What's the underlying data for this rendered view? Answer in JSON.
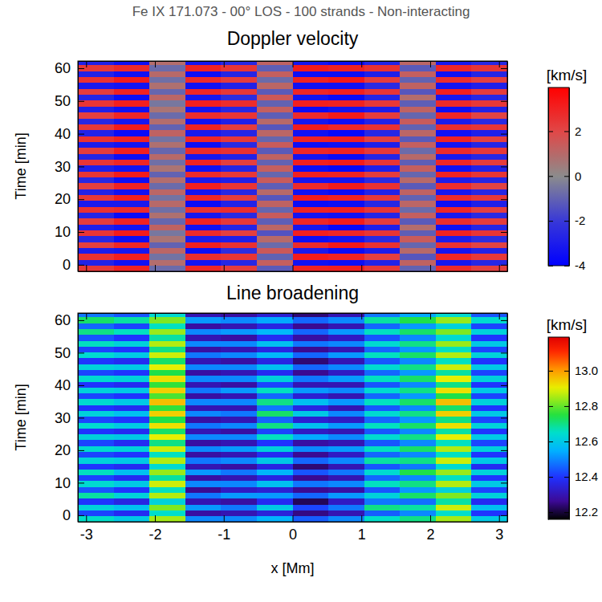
{
  "title": "Fe IX 171.073 - 00° LOS - 100 strands - Non-interacting",
  "chart_data": [
    {
      "type": "heatmap",
      "title": "Doppler velocity",
      "y_label": "Time [min]",
      "tick_labels": "y",
      "color": "bwr",
      "xlim": [
        -3.12,
        3.12
      ],
      "xticks": [
        -3,
        -2,
        -1,
        0,
        1,
        2,
        3
      ],
      "ylim": [
        -2,
        62.2
      ],
      "yticks": [
        0,
        10,
        20,
        30,
        40,
        50,
        60
      ],
      "x_edges": [
        -3.12,
        -2.6,
        -2.08,
        -1.56,
        -1.04,
        -0.52,
        0,
        0.52,
        1.04,
        1.56,
        2.08,
        2.6,
        3.12
      ],
      "y_edges": [
        -2,
        -0.2,
        1.6,
        3.4,
        5.2,
        7.0,
        8.8,
        10.6,
        12.4,
        14.2,
        16.0,
        17.8,
        19.6,
        21.4,
        23.2,
        25.0,
        26.8,
        28.6,
        30.4,
        32.2,
        34.0,
        35.8,
        37.6,
        39.4,
        41.2,
        43.0,
        44.8,
        46.6,
        48.4,
        50.2,
        52.0,
        53.8,
        55.6,
        57.4,
        59.2,
        61.0,
        62.8
      ],
      "values": [
        [
          2.4,
          3.0,
          -0.8,
          2.9,
          2.3,
          -1.2,
          3.0,
          3.1,
          2.4,
          -1.0,
          2.8,
          2.2
        ],
        [
          -2.8,
          -3.4,
          0.9,
          -3.3,
          -2.6,
          1.3,
          -3.4,
          -3.5,
          -2.8,
          1.2,
          -3.2,
          -2.6
        ],
        [
          2.6,
          3.1,
          -0.6,
          2.7,
          2.5,
          -1.0,
          3.2,
          3.0,
          2.2,
          -1.3,
          2.9,
          2.4
        ],
        [
          -3.0,
          -3.2,
          1.1,
          -3.5,
          -2.4,
          1.5,
          -3.1,
          -3.6,
          -3.0,
          1.0,
          -3.3,
          -2.8
        ],
        [
          2.2,
          2.9,
          -1.0,
          3.1,
          2.6,
          -0.8,
          2.8,
          3.3,
          2.6,
          -0.9,
          2.6,
          2.1
        ],
        [
          -2.6,
          -3.5,
          0.7,
          -3.0,
          -2.9,
          1.0,
          -3.5,
          -3.3,
          -2.5,
          1.4,
          -3.0,
          -2.4
        ],
        [
          2.5,
          3.2,
          -0.5,
          2.8,
          2.2,
          -1.4,
          3.1,
          2.9,
          2.5,
          -1.1,
          3.0,
          2.5
        ],
        [
          -2.9,
          -3.3,
          1.2,
          -3.4,
          -2.7,
          1.1,
          -3.2,
          -3.7,
          -2.9,
          0.9,
          -3.4,
          -2.7
        ],
        [
          2.3,
          3.0,
          -0.9,
          3.0,
          2.4,
          -1.1,
          2.9,
          3.2,
          2.3,
          -1.2,
          2.7,
          2.3
        ],
        [
          -2.7,
          -3.6,
          0.8,
          -3.2,
          -2.5,
          1.4,
          -3.3,
          -3.4,
          -2.7,
          1.3,
          -3.1,
          -2.5
        ],
        [
          2.6,
          2.8,
          -0.7,
          2.6,
          2.7,
          -0.9,
          3.0,
          3.1,
          2.5,
          -0.8,
          2.9,
          2.2
        ],
        [
          -3.1,
          -3.1,
          1.0,
          -3.6,
          -2.8,
          1.2,
          -3.6,
          -3.5,
          -2.6,
          1.1,
          -3.5,
          -2.9
        ],
        [
          2.4,
          3.1,
          -0.6,
          2.9,
          2.3,
          -1.3,
          3.2,
          3.0,
          2.4,
          -1.0,
          2.8,
          2.4
        ],
        [
          -2.8,
          -3.4,
          1.1,
          -3.3,
          -2.6,
          1.0,
          -3.4,
          -3.6,
          -2.8,
          1.2,
          -3.2,
          -2.6
        ],
        [
          2.2,
          3.0,
          -0.8,
          3.1,
          2.5,
          -1.1,
          2.8,
          3.2,
          2.6,
          -1.2,
          2.7,
          2.1
        ],
        [
          -2.6,
          -3.5,
          0.9,
          -3.1,
          -2.9,
          1.4,
          -3.3,
          -3.3,
          -2.5,
          1.0,
          -3.0,
          -2.7
        ],
        [
          2.5,
          3.2,
          -1.0,
          2.8,
          2.4,
          -0.9,
          3.1,
          3.0,
          2.3,
          -0.9,
          3.0,
          2.5
        ],
        [
          -2.9,
          -3.3,
          0.7,
          -3.4,
          -2.7,
          1.3,
          -3.5,
          -3.7,
          -2.9,
          1.3,
          -3.4,
          -2.8
        ],
        [
          2.5,
          2.9,
          -0.7,
          3.0,
          2.2,
          -1.0,
          3.1,
          3.2,
          2.5,
          -1.1,
          2.9,
          2.3
        ],
        [
          -2.7,
          -3.5,
          1.0,
          -3.2,
          -2.8,
          1.2,
          -3.3,
          -3.6,
          -2.7,
          1.0,
          -3.1,
          -2.6
        ],
        [
          2.3,
          3.1,
          -0.9,
          2.8,
          2.6,
          -1.2,
          2.9,
          3.0,
          2.4,
          -0.8,
          2.8,
          2.4
        ],
        [
          -3.0,
          -3.3,
          0.8,
          -3.5,
          -2.5,
          1.4,
          -3.5,
          -3.4,
          -2.9,
          1.3,
          -3.3,
          -2.7
        ],
        [
          2.6,
          3.0,
          -0.6,
          2.9,
          2.4,
          -0.9,
          3.0,
          3.1,
          2.2,
          -1.2,
          3.0,
          2.2
        ],
        [
          -2.8,
          -3.6,
          1.2,
          -3.1,
          -2.7,
          1.1,
          -3.4,
          -3.7,
          -2.6,
          1.1,
          -3.4,
          -2.9
        ],
        [
          2.4,
          3.2,
          -1.0,
          3.0,
          2.3,
          -1.3,
          3.2,
          2.9,
          2.6,
          -1.0,
          2.7,
          2.5
        ],
        [
          -2.6,
          -3.2,
          0.9,
          -3.4,
          -2.9,
          1.0,
          -3.2,
          -3.5,
          -2.8,
          1.4,
          -3.0,
          -2.5
        ],
        [
          2.2,
          2.9,
          -0.8,
          2.7,
          2.5,
          -1.1,
          2.8,
          3.2,
          2.3,
          -0.9,
          2.9,
          2.1
        ],
        [
          -2.9,
          -3.4,
          0.7,
          -3.3,
          -2.6,
          1.3,
          -3.6,
          -3.3,
          -3.0,
          1.2,
          -3.5,
          -2.8
        ],
        [
          2.5,
          3.1,
          -0.5,
          3.1,
          2.7,
          -1.0,
          3.1,
          3.0,
          2.4,
          -1.1,
          2.8,
          2.4
        ],
        [
          -2.7,
          -3.5,
          1.1,
          -3.2,
          -2.4,
          1.5,
          -3.3,
          -3.6,
          -2.7,
          0.9,
          -3.2,
          -2.6
        ],
        [
          2.3,
          3.0,
          -0.9,
          2.9,
          2.4,
          -1.2,
          2.9,
          3.1,
          2.5,
          -1.3,
          3.1,
          2.3
        ],
        [
          -3.1,
          -3.3,
          0.8,
          -3.4,
          -2.8,
          1.1,
          -3.4,
          -3.4,
          -2.5,
          1.2,
          -3.3,
          -2.9
        ],
        [
          2.6,
          3.2,
          -0.7,
          2.8,
          2.3,
          -0.8,
          3.0,
          3.3,
          2.3,
          -1.0,
          2.7,
          2.2
        ],
        [
          -2.8,
          -3.4,
          1.0,
          -3.5,
          -2.7,
          1.3,
          -3.5,
          -3.5,
          -2.9,
          1.3,
          -3.4,
          -2.7
        ],
        [
          2.4,
          2.8,
          -0.8,
          3.0,
          2.5,
          -1.1,
          3.2,
          3.0,
          2.6,
          -1.2,
          2.9,
          2.5
        ],
        [
          -2.9,
          -3.5,
          0.9,
          -3.3,
          -2.6,
          1.2,
          -3.3,
          -3.6,
          -2.8,
          1.1,
          -3.2,
          -2.6
        ]
      ],
      "colorbar_label": "[km/s]",
      "colorbar_range": [
        -4,
        3.95
      ],
      "colorbar_ticks": [
        -4,
        -2,
        0,
        2
      ]
    },
    {
      "type": "heatmap",
      "title": "Line broadening",
      "x_label": "x [Mm]",
      "y_label": "Time [min]",
      "color": "rainbow",
      "xlim": [
        -3.12,
        3.12
      ],
      "xticks": [
        -3,
        -2,
        -1,
        0,
        1,
        2,
        3
      ],
      "ylim": [
        -2,
        62.2
      ],
      "yticks": [
        0,
        10,
        20,
        30,
        40,
        50,
        60
      ],
      "x_edges": [
        -3.12,
        -2.6,
        -2.08,
        -1.56,
        -1.04,
        -0.52,
        0,
        0.52,
        1.04,
        1.56,
        2.08,
        2.6,
        3.12
      ],
      "y_edges": [
        -2,
        -0.2,
        1.6,
        3.4,
        5.2,
        7.0,
        8.8,
        10.6,
        12.4,
        14.2,
        16.0,
        17.8,
        19.6,
        21.4,
        23.2,
        25.0,
        26.8,
        28.6,
        30.4,
        32.2,
        34.0,
        35.8,
        37.6,
        39.4,
        41.2,
        43.0,
        44.8,
        46.6,
        48.4,
        50.2,
        52.0,
        53.8,
        55.6,
        57.4,
        59.2,
        61.0,
        62.8
      ],
      "values": [
        [
          12.65,
          12.6,
          12.85,
          12.5,
          12.5,
          12.55,
          12.45,
          12.5,
          12.65,
          12.7,
          12.85,
          12.6
        ],
        [
          12.42,
          12.38,
          12.65,
          12.28,
          12.3,
          12.35,
          12.25,
          12.3,
          12.45,
          12.5,
          12.65,
          12.4
        ],
        [
          12.62,
          12.58,
          12.82,
          12.52,
          12.48,
          12.6,
          12.42,
          12.48,
          12.7,
          12.68,
          12.88,
          12.58
        ],
        [
          12.4,
          12.36,
          12.62,
          12.3,
          12.28,
          12.38,
          12.22,
          12.32,
          12.48,
          12.47,
          12.68,
          12.38
        ],
        [
          12.68,
          12.62,
          12.86,
          12.48,
          12.52,
          12.52,
          12.46,
          12.52,
          12.62,
          12.72,
          12.82,
          12.62
        ],
        [
          12.44,
          12.4,
          12.66,
          12.26,
          12.32,
          12.34,
          12.26,
          12.28,
          12.44,
          12.52,
          12.62,
          12.42
        ],
        [
          12.64,
          12.6,
          12.88,
          12.5,
          12.5,
          12.58,
          12.48,
          12.5,
          12.66,
          12.7,
          12.86,
          12.6
        ],
        [
          12.42,
          12.38,
          12.68,
          12.28,
          12.3,
          12.36,
          12.26,
          12.3,
          12.46,
          12.5,
          12.66,
          12.4
        ],
        [
          12.66,
          12.58,
          12.84,
          12.52,
          12.48,
          12.56,
          12.44,
          12.48,
          12.64,
          12.74,
          12.84,
          12.62
        ],
        [
          12.4,
          12.38,
          12.64,
          12.3,
          12.28,
          12.36,
          12.24,
          12.3,
          12.44,
          12.48,
          12.64,
          12.38
        ],
        [
          12.62,
          12.6,
          12.86,
          12.48,
          12.5,
          12.6,
          12.46,
          12.5,
          12.68,
          12.7,
          12.88,
          12.6
        ],
        [
          12.42,
          12.4,
          12.66,
          12.28,
          12.3,
          12.38,
          12.26,
          12.32,
          12.46,
          12.5,
          12.66,
          12.4
        ],
        [
          12.64,
          12.62,
          12.88,
          12.5,
          12.52,
          12.62,
          12.5,
          12.52,
          12.66,
          12.72,
          12.86,
          12.62
        ],
        [
          12.42,
          12.38,
          12.7,
          12.28,
          12.3,
          12.4,
          12.28,
          12.3,
          12.44,
          12.5,
          12.66,
          12.42
        ],
        [
          12.62,
          12.6,
          12.9,
          12.5,
          12.5,
          12.66,
          12.54,
          12.5,
          12.64,
          12.7,
          12.9,
          12.6
        ],
        [
          12.4,
          12.38,
          12.72,
          12.3,
          12.28,
          12.42,
          12.32,
          12.3,
          12.44,
          12.5,
          12.68,
          12.4
        ],
        [
          12.64,
          12.6,
          12.92,
          12.48,
          12.5,
          12.7,
          12.58,
          12.52,
          12.66,
          12.72,
          12.92,
          12.62
        ],
        [
          12.42,
          12.4,
          12.74,
          12.28,
          12.3,
          12.46,
          12.34,
          12.32,
          12.46,
          12.52,
          12.7,
          12.42
        ],
        [
          12.62,
          12.58,
          12.94,
          12.5,
          12.48,
          12.72,
          12.6,
          12.5,
          12.64,
          12.7,
          12.94,
          12.6
        ],
        [
          12.4,
          12.38,
          12.76,
          12.3,
          12.3,
          12.48,
          12.36,
          12.3,
          12.44,
          12.5,
          12.72,
          12.4
        ],
        [
          12.64,
          12.6,
          12.96,
          12.5,
          12.5,
          12.7,
          12.58,
          12.52,
          12.66,
          12.72,
          12.96,
          12.62
        ],
        [
          12.42,
          12.4,
          12.78,
          12.28,
          12.3,
          12.46,
          12.34,
          12.3,
          12.46,
          12.52,
          12.74,
          12.42
        ],
        [
          12.62,
          12.6,
          12.94,
          12.48,
          12.52,
          12.66,
          12.52,
          12.5,
          12.64,
          12.7,
          12.92,
          12.6
        ],
        [
          12.4,
          12.38,
          12.76,
          12.3,
          12.28,
          12.42,
          12.3,
          12.3,
          12.44,
          12.5,
          12.7,
          12.4
        ],
        [
          12.64,
          12.62,
          12.92,
          12.5,
          12.5,
          12.62,
          12.48,
          12.52,
          12.66,
          12.72,
          12.9,
          12.62
        ],
        [
          12.42,
          12.4,
          12.74,
          12.28,
          12.3,
          12.38,
          12.26,
          12.32,
          12.46,
          12.52,
          12.68,
          12.42
        ],
        [
          12.62,
          12.6,
          12.9,
          12.5,
          12.5,
          12.58,
          12.46,
          12.5,
          12.64,
          12.7,
          12.88,
          12.6
        ],
        [
          12.4,
          12.38,
          12.72,
          12.3,
          12.28,
          12.36,
          12.24,
          12.3,
          12.44,
          12.5,
          12.66,
          12.4
        ],
        [
          12.64,
          12.6,
          12.88,
          12.48,
          12.5,
          12.56,
          12.46,
          12.52,
          12.66,
          12.72,
          12.86,
          12.62
        ],
        [
          12.42,
          12.4,
          12.7,
          12.28,
          12.3,
          12.36,
          12.26,
          12.3,
          12.46,
          12.52,
          12.66,
          12.42
        ],
        [
          12.66,
          12.62,
          12.86,
          12.5,
          12.5,
          12.58,
          12.48,
          12.5,
          12.64,
          12.7,
          12.84,
          12.6
        ],
        [
          12.44,
          12.4,
          12.68,
          12.3,
          12.28,
          12.38,
          12.28,
          12.32,
          12.44,
          12.5,
          12.64,
          12.4
        ],
        [
          12.7,
          12.66,
          12.84,
          12.5,
          12.52,
          12.56,
          12.46,
          12.52,
          12.66,
          12.72,
          12.82,
          12.62
        ],
        [
          12.46,
          12.42,
          12.66,
          12.28,
          12.3,
          12.36,
          12.26,
          12.3,
          12.46,
          12.52,
          12.62,
          12.42
        ],
        [
          12.72,
          12.68,
          12.82,
          12.52,
          12.5,
          12.54,
          12.46,
          12.5,
          12.68,
          12.74,
          12.84,
          12.64
        ],
        [
          12.48,
          12.44,
          12.64,
          12.3,
          12.28,
          12.34,
          12.24,
          12.3,
          12.48,
          12.54,
          12.64,
          12.44
        ]
      ],
      "colorbar_label": "[km/s]",
      "colorbar_range": [
        12.16,
        13.19
      ],
      "colorbar_ticks": [
        12.2,
        12.4,
        12.6,
        12.8,
        {
          "value": 13,
          "label": "13.0"
        }
      ]
    }
  ]
}
